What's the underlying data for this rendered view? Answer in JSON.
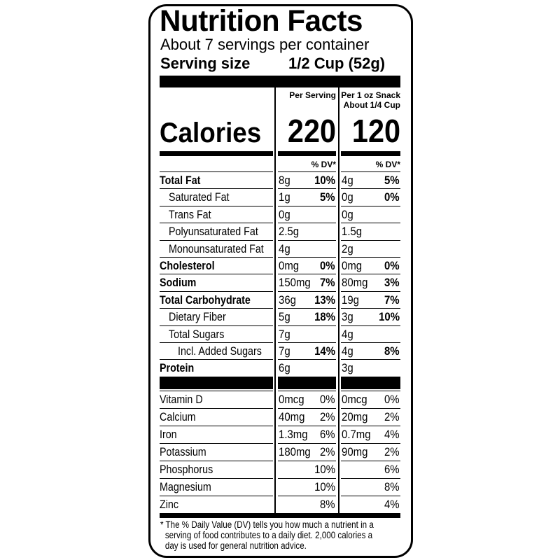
{
  "title": "Nutrition Facts",
  "servings_per_container": "About 7 servings per container",
  "serving_size": {
    "label": "Serving size",
    "value": "1/2 Cup (52g)"
  },
  "columns": [
    {
      "header_line1": "Per Serving",
      "header_line2": "",
      "calories": "220",
      "dv_header": "% DV*"
    },
    {
      "header_line1": "Per 1 oz Snack",
      "header_line2": "About 1/4 Cup",
      "calories": "120",
      "dv_header": "% DV*"
    }
  ],
  "calories_label": "Calories",
  "nutrients": [
    {
      "name": "Total Fat",
      "bold": true,
      "indent": 0,
      "v1": "8g",
      "d1": "10%",
      "v2": "4g",
      "d2": "5%"
    },
    {
      "name": "Saturated Fat",
      "bold": false,
      "indent": 1,
      "v1": "1g",
      "d1": "5%",
      "v2": "0g",
      "d2": "0%"
    },
    {
      "name": "Trans Fat",
      "bold": false,
      "indent": 1,
      "v1": "0g",
      "d1": "",
      "v2": "0g",
      "d2": ""
    },
    {
      "name": "Polyunsaturated Fat",
      "bold": false,
      "indent": 1,
      "v1": "2.5g",
      "d1": "",
      "v2": "1.5g",
      "d2": ""
    },
    {
      "name": "Monounsaturated Fat",
      "bold": false,
      "indent": 1,
      "v1": "4g",
      "d1": "",
      "v2": "2g",
      "d2": ""
    },
    {
      "name": "Cholesterol",
      "bold": true,
      "indent": 0,
      "v1": "0mg",
      "d1": "0%",
      "v2": "0mg",
      "d2": "0%"
    },
    {
      "name": "Sodium",
      "bold": true,
      "indent": 0,
      "v1": "150mg",
      "d1": "7%",
      "v2": "80mg",
      "d2": "3%"
    },
    {
      "name": "Total Carbohydrate",
      "bold": true,
      "indent": 0,
      "v1": "36g",
      "d1": "13%",
      "v2": "19g",
      "d2": "7%"
    },
    {
      "name": "Dietary Fiber",
      "bold": false,
      "indent": 1,
      "v1": "5g",
      "d1": "18%",
      "v2": "3g",
      "d2": "10%"
    },
    {
      "name": "Total Sugars",
      "bold": false,
      "indent": 1,
      "v1": "7g",
      "d1": "",
      "v2": "4g",
      "d2": ""
    },
    {
      "name": "Incl. Added Sugars",
      "bold": false,
      "indent": 2,
      "v1": "7g",
      "d1": "14%",
      "v2": "4g",
      "d2": "8%"
    },
    {
      "name": "Protein",
      "bold": true,
      "indent": 0,
      "v1": "6g",
      "d1": "",
      "v2": "3g",
      "d2": ""
    }
  ],
  "vitamins": [
    {
      "name": "Vitamin D",
      "v1": "0mcg",
      "d1": "0%",
      "v2": "0mcg",
      "d2": "0%"
    },
    {
      "name": "Calcium",
      "v1": "40mg",
      "d1": "2%",
      "v2": "20mg",
      "d2": "2%"
    },
    {
      "name": "Iron",
      "v1": "1.3mg",
      "d1": "6%",
      "v2": "0.7mg",
      "d2": "4%"
    },
    {
      "name": "Potassium",
      "v1": "180mg",
      "d1": "2%",
      "v2": "90mg",
      "d2": "2%"
    },
    {
      "name": "Phosphorus",
      "v1": "",
      "d1": "10%",
      "v2": "",
      "d2": "6%"
    },
    {
      "name": "Magnesium",
      "v1": "",
      "d1": "10%",
      "v2": "",
      "d2": "8%"
    },
    {
      "name": "Zinc",
      "v1": "",
      "d1": "8%",
      "v2": "",
      "d2": "4%"
    }
  ],
  "footnote": [
    "* The % Daily Value (DV) tells you how much a nutrient in a",
    "serving of food contributes to a daily diet. 2,000 calories a",
    "day is used for general nutrition advice."
  ]
}
